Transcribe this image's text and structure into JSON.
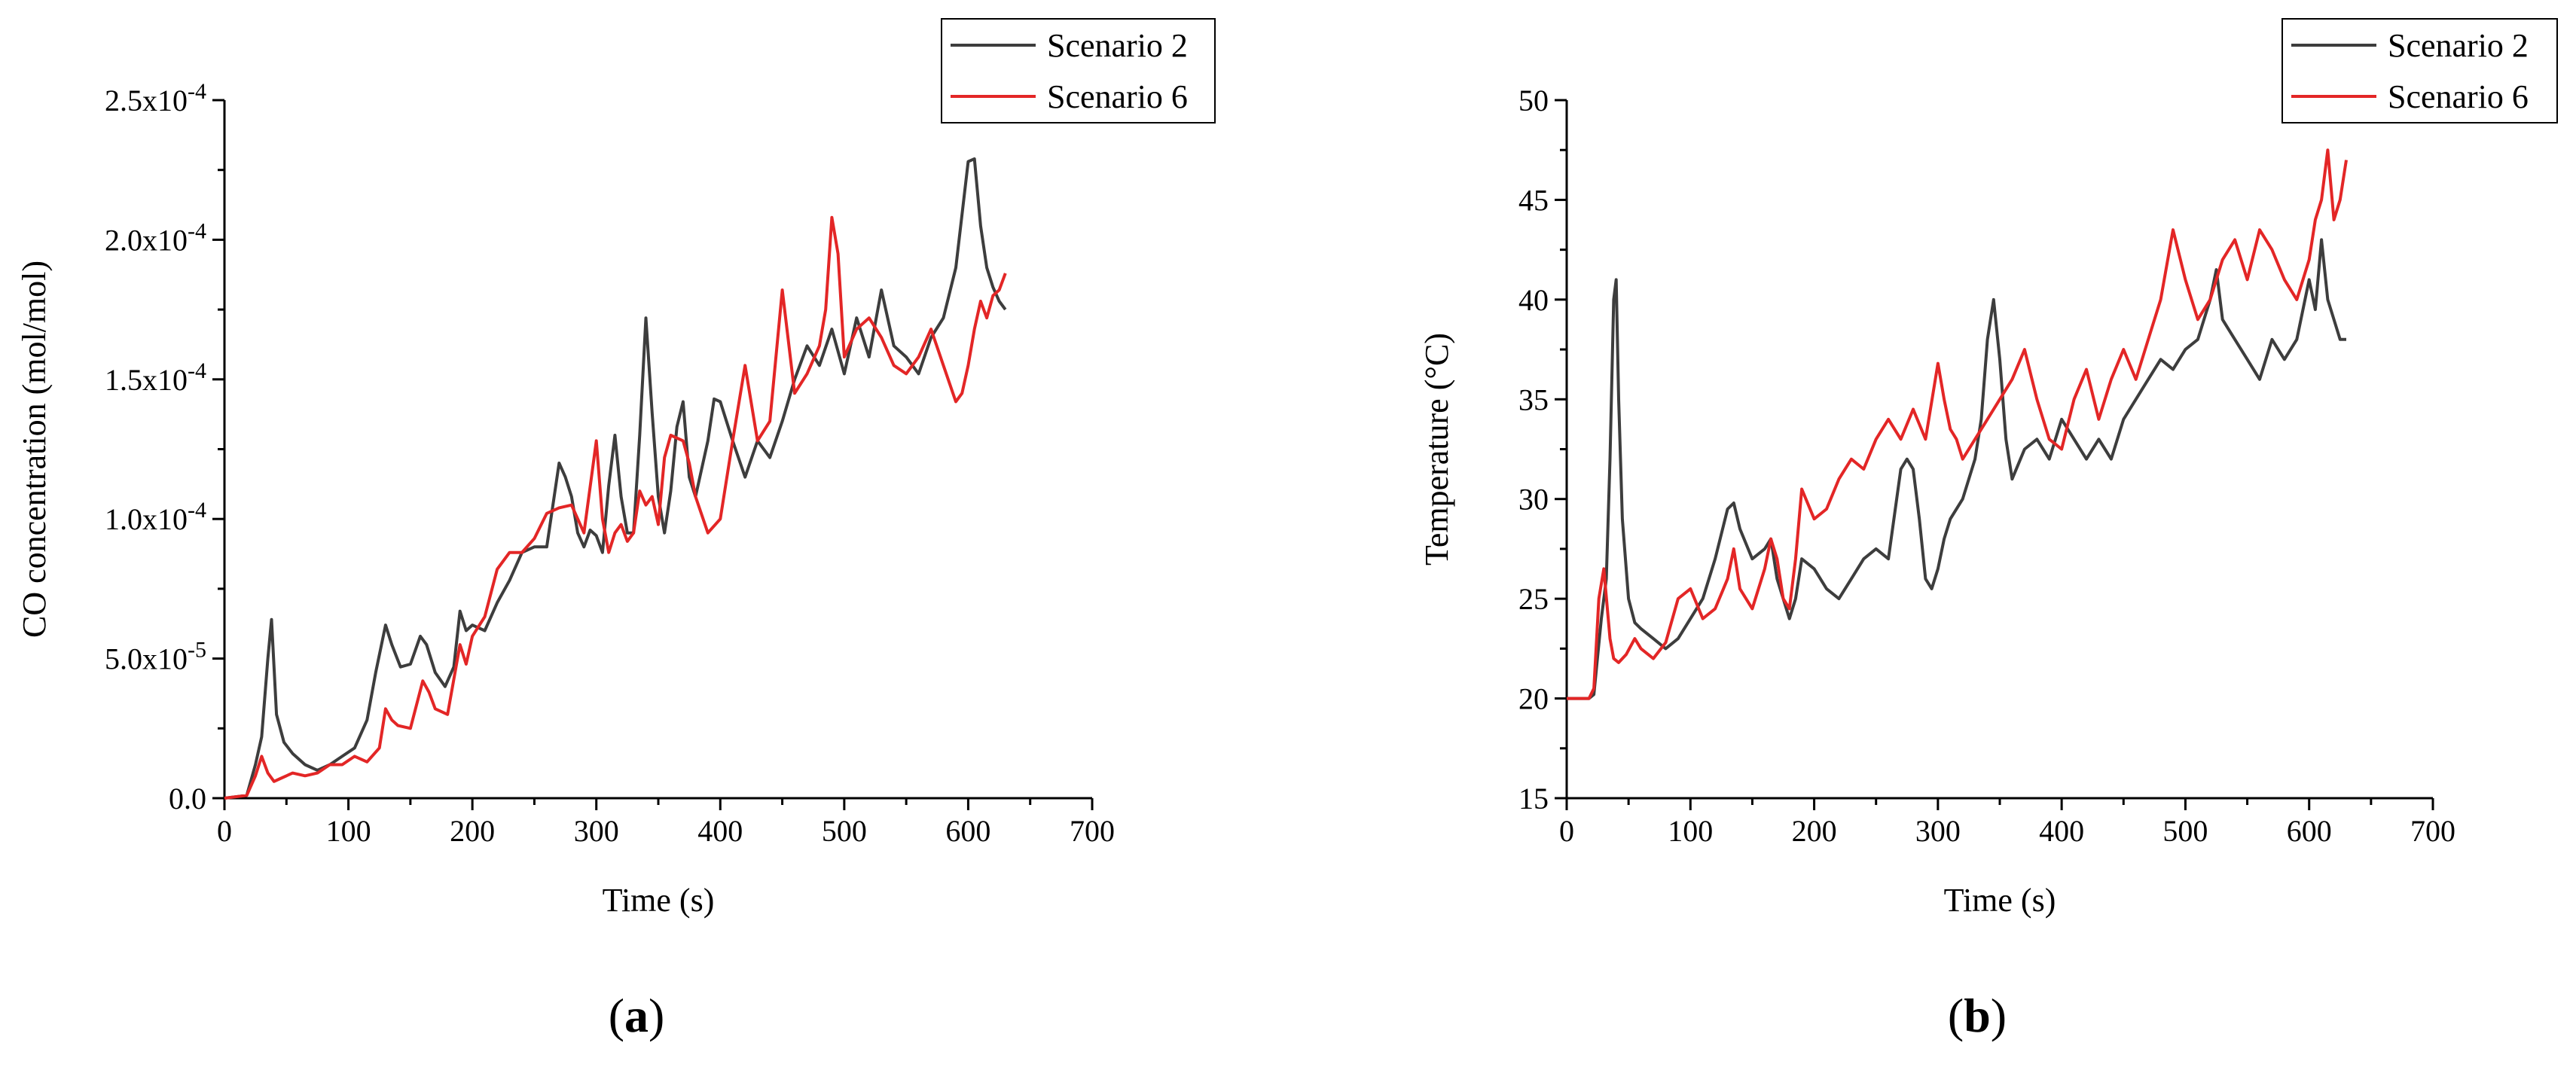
{
  "panels": [
    {
      "label_open": "(",
      "label_letter": "a",
      "label_close": ")"
    },
    {
      "label_open": "(",
      "label_letter": "b",
      "label_close": ")"
    }
  ],
  "colors": {
    "scenario2": "#3d3d3d",
    "scenario6": "#e32626",
    "axis": "#000000"
  },
  "chart_data": [
    {
      "type": "line",
      "xlabel": "Time (s)",
      "ylabel": "CO concentration (mol/mol)",
      "xlim": [
        0,
        700
      ],
      "ylim": [
        0,
        0.00025
      ],
      "xticks": [
        0,
        100,
        200,
        300,
        400,
        500,
        600,
        700
      ],
      "xtick_labels": [
        "0",
        "100",
        "200",
        "300",
        "400",
        "500",
        "600",
        "700"
      ],
      "yticks": [
        0,
        5e-05,
        0.0001,
        0.00015,
        0.0002,
        0.00025
      ],
      "ytick_labels": [
        {
          "mant": "0.0",
          "exp": ""
        },
        {
          "mant": "5.0x10",
          "exp": "-5"
        },
        {
          "mant": "1.0x10",
          "exp": "-4"
        },
        {
          "mant": "1.5x10",
          "exp": "-4"
        },
        {
          "mant": "2.0x10",
          "exp": "-4"
        },
        {
          "mant": "2.5x10",
          "exp": "-4"
        }
      ],
      "grid": false,
      "legend_position": "top-right",
      "series": [
        {
          "name": "Scenario 2",
          "color": "#3d3d3d",
          "x": [
            0,
            18,
            25,
            30,
            35,
            38,
            42,
            48,
            55,
            65,
            75,
            85,
            95,
            105,
            115,
            122,
            130,
            135,
            142,
            150,
            158,
            163,
            170,
            178,
            185,
            190,
            195,
            200,
            210,
            220,
            230,
            240,
            250,
            260,
            270,
            275,
            280,
            285,
            290,
            295,
            300,
            305,
            310,
            315,
            320,
            325,
            330,
            335,
            340,
            345,
            350,
            355,
            360,
            365,
            370,
            375,
            380,
            385,
            390,
            395,
            400,
            410,
            420,
            430,
            440,
            450,
            460,
            470,
            480,
            490,
            500,
            510,
            520,
            530,
            540,
            550,
            560,
            570,
            580,
            590,
            600,
            605,
            610,
            615,
            620,
            625,
            630
          ],
          "y": [
            0,
            1e-06,
            1.2e-05,
            2.2e-05,
            5e-05,
            6.4e-05,
            3e-05,
            2e-05,
            1.6e-05,
            1.2e-05,
            1e-05,
            1.2e-05,
            1.5e-05,
            1.8e-05,
            2.8e-05,
            4.5e-05,
            6.2e-05,
            5.5e-05,
            4.7e-05,
            4.8e-05,
            5.8e-05,
            5.5e-05,
            4.5e-05,
            4e-05,
            4.7e-05,
            6.7e-05,
            6e-05,
            6.2e-05,
            6e-05,
            7e-05,
            7.8e-05,
            8.8e-05,
            9e-05,
            9e-05,
            0.00012,
            0.000115,
            0.000108,
            9.5e-05,
            9e-05,
            9.6e-05,
            9.4e-05,
            8.8e-05,
            0.000112,
            0.00013,
            0.000108,
            9.5e-05,
            9.5e-05,
            0.00013,
            0.000172,
            0.000138,
            0.000108,
            9.5e-05,
            0.00011,
            0.000133,
            0.000142,
            0.000115,
            0.000108,
            0.000118,
            0.000128,
            0.000143,
            0.000142,
            0.000128,
            0.000115,
            0.000128,
            0.000122,
            0.000135,
            0.00015,
            0.000162,
            0.000155,
            0.000168,
            0.000152,
            0.000172,
            0.000158,
            0.000182,
            0.000162,
            0.000158,
            0.000152,
            0.000165,
            0.000172,
            0.00019,
            0.000228,
            0.000229,
            0.000205,
            0.00019,
            0.000183,
            0.000178,
            0.000175
          ]
        },
        {
          "name": "Scenario 6",
          "color": "#e32626",
          "x": [
            0,
            18,
            25,
            30,
            35,
            40,
            45,
            55,
            65,
            75,
            85,
            95,
            105,
            115,
            125,
            130,
            135,
            140,
            150,
            160,
            165,
            170,
            180,
            190,
            195,
            200,
            210,
            220,
            230,
            240,
            250,
            260,
            270,
            280,
            290,
            300,
            305,
            310,
            315,
            320,
            325,
            330,
            335,
            340,
            345,
            350,
            355,
            360,
            370,
            375,
            380,
            390,
            400,
            410,
            420,
            430,
            440,
            450,
            460,
            470,
            480,
            485,
            490,
            495,
            500,
            510,
            520,
            530,
            540,
            550,
            560,
            570,
            580,
            590,
            595,
            600,
            605,
            610,
            615,
            620,
            625,
            630
          ],
          "y": [
            0,
            1e-06,
            8e-06,
            1.5e-05,
            9e-06,
            6e-06,
            7e-06,
            9e-06,
            8e-06,
            9e-06,
            1.2e-05,
            1.2e-05,
            1.5e-05,
            1.3e-05,
            1.8e-05,
            3.2e-05,
            2.8e-05,
            2.6e-05,
            2.5e-05,
            4.2e-05,
            3.8e-05,
            3.2e-05,
            3e-05,
            5.5e-05,
            4.8e-05,
            5.8e-05,
            6.5e-05,
            8.2e-05,
            8.8e-05,
            8.8e-05,
            9.3e-05,
            0.000102,
            0.000104,
            0.000105,
            9.5e-05,
            0.000128,
            0.0001,
            8.8e-05,
            9.5e-05,
            9.8e-05,
            9.2e-05,
            9.5e-05,
            0.00011,
            0.000105,
            0.000108,
            9.8e-05,
            0.000122,
            0.00013,
            0.000128,
            0.00012,
            0.000108,
            9.5e-05,
            0.0001,
            0.000128,
            0.000155,
            0.000128,
            0.000135,
            0.000182,
            0.000145,
            0.000152,
            0.000162,
            0.000175,
            0.000208,
            0.000195,
            0.000158,
            0.000168,
            0.000172,
            0.000165,
            0.000155,
            0.000152,
            0.000158,
            0.000168,
            0.000155,
            0.000142,
            0.000145,
            0.000155,
            0.000168,
            0.000178,
            0.000172,
            0.00018,
            0.000182,
            0.000188
          ]
        }
      ]
    },
    {
      "type": "line",
      "xlabel": "Time (s)",
      "ylabel": "Temperature (°C)",
      "xlim": [
        0,
        700
      ],
      "ylim": [
        15,
        50
      ],
      "xticks": [
        0,
        100,
        200,
        300,
        400,
        500,
        600,
        700
      ],
      "xtick_labels": [
        "0",
        "100",
        "200",
        "300",
        "400",
        "500",
        "600",
        "700"
      ],
      "yticks": [
        15,
        20,
        25,
        30,
        35,
        40,
        45,
        50
      ],
      "ytick_labels": [
        {
          "mant": "15",
          "exp": ""
        },
        {
          "mant": "20",
          "exp": ""
        },
        {
          "mant": "25",
          "exp": ""
        },
        {
          "mant": "30",
          "exp": ""
        },
        {
          "mant": "35",
          "exp": ""
        },
        {
          "mant": "40",
          "exp": ""
        },
        {
          "mant": "45",
          "exp": ""
        },
        {
          "mant": "50",
          "exp": ""
        }
      ],
      "grid": false,
      "legend_position": "top-right",
      "series": [
        {
          "name": "Scenario 2",
          "color": "#3d3d3d",
          "x": [
            0,
            18,
            22,
            28,
            32,
            35,
            38,
            40,
            42,
            45,
            50,
            55,
            60,
            70,
            80,
            90,
            100,
            110,
            120,
            130,
            135,
            140,
            150,
            160,
            165,
            170,
            175,
            180,
            185,
            190,
            200,
            210,
            220,
            230,
            240,
            250,
            260,
            270,
            275,
            280,
            285,
            290,
            295,
            300,
            305,
            310,
            320,
            330,
            335,
            340,
            345,
            350,
            355,
            360,
            370,
            380,
            390,
            400,
            410,
            420,
            430,
            440,
            450,
            460,
            470,
            480,
            490,
            500,
            510,
            520,
            525,
            530,
            540,
            550,
            560,
            570,
            580,
            590,
            600,
            605,
            610,
            615,
            620,
            625,
            630
          ],
          "y": [
            20,
            20,
            20.2,
            24,
            26,
            32,
            40,
            41,
            35,
            29,
            25,
            23.8,
            23.5,
            23,
            22.5,
            23,
            24,
            25,
            27,
            29.5,
            29.8,
            28.5,
            27,
            27.5,
            28,
            26,
            25,
            24,
            25,
            27,
            26.5,
            25.5,
            25,
            26,
            27,
            27.5,
            27,
            31.5,
            32,
            31.5,
            29,
            26,
            25.5,
            26.5,
            28,
            29,
            30,
            32,
            34,
            38,
            40,
            37,
            33,
            31,
            32.5,
            33,
            32,
            34,
            33,
            32,
            33,
            32,
            34,
            35,
            36,
            37,
            36.5,
            37.5,
            38,
            40,
            41.5,
            39,
            38,
            37,
            36,
            38,
            37,
            38,
            41,
            39.5,
            43,
            40,
            39,
            38,
            38
          ]
        },
        {
          "name": "Scenario 6",
          "color": "#e32626",
          "x": [
            0,
            18,
            22,
            26,
            30,
            35,
            38,
            42,
            48,
            55,
            60,
            70,
            80,
            90,
            100,
            110,
            120,
            130,
            135,
            140,
            150,
            160,
            165,
            170,
            175,
            180,
            185,
            190,
            200,
            210,
            220,
            230,
            240,
            250,
            260,
            270,
            280,
            290,
            300,
            305,
            310,
            315,
            320,
            330,
            340,
            350,
            360,
            370,
            380,
            390,
            400,
            410,
            420,
            430,
            440,
            450,
            460,
            470,
            480,
            490,
            500,
            510,
            520,
            530,
            540,
            550,
            560,
            570,
            580,
            590,
            600,
            605,
            610,
            615,
            620,
            625,
            630
          ],
          "y": [
            20,
            20,
            20.5,
            25,
            26.5,
            23,
            22,
            21.8,
            22.2,
            23,
            22.5,
            22,
            22.8,
            25,
            25.5,
            24,
            24.5,
            26,
            27.5,
            25.5,
            24.5,
            26.5,
            28,
            27,
            25,
            24.5,
            27,
            30.5,
            29,
            29.5,
            31,
            32,
            31.5,
            33,
            34,
            33,
            34.5,
            33,
            36.8,
            35,
            33.5,
            33,
            32,
            33,
            34,
            35,
            36,
            37.5,
            35,
            33,
            32.5,
            35,
            36.5,
            34,
            36,
            37.5,
            36,
            38,
            40,
            43.5,
            41,
            39,
            40,
            42,
            43,
            41,
            43.5,
            42.5,
            41,
            40,
            42,
            44,
            45,
            47.5,
            44,
            45,
            47
          ]
        }
      ]
    }
  ]
}
